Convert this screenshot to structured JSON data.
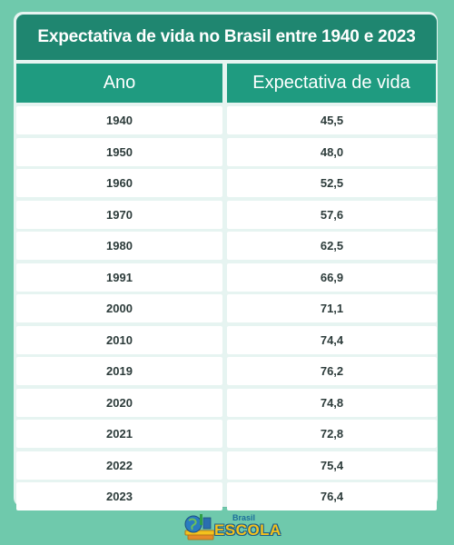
{
  "title": "Expectativa de vida no Brasil entre 1940 e 2023",
  "columns": [
    "Ano",
    "Expectativa de vida"
  ],
  "rows": [
    [
      "1940",
      "45,5"
    ],
    [
      "1950",
      "48,0"
    ],
    [
      "1960",
      "52,5"
    ],
    [
      "1970",
      "57,6"
    ],
    [
      "1980",
      "62,5"
    ],
    [
      "1991",
      "66,9"
    ],
    [
      "2000",
      "71,1"
    ],
    [
      "2010",
      "74,4"
    ],
    [
      "2019",
      "76,2"
    ],
    [
      "2020",
      "74,8"
    ],
    [
      "2021",
      "72,8"
    ],
    [
      "2022",
      "75,4"
    ],
    [
      "2023",
      "76,4"
    ]
  ],
  "logo": {
    "top_word": "Brasil",
    "main_word": "ESCOLA",
    "icon": "globe-books-icon"
  },
  "colors": {
    "background": "#6fc9ac",
    "title_bar": "#1f8670",
    "header": "#1f9b80",
    "card": "#e6f4f1",
    "cell": "#ffffff",
    "logo_yellow": "#f3c21d",
    "logo_blue": "#1c6e9b"
  }
}
